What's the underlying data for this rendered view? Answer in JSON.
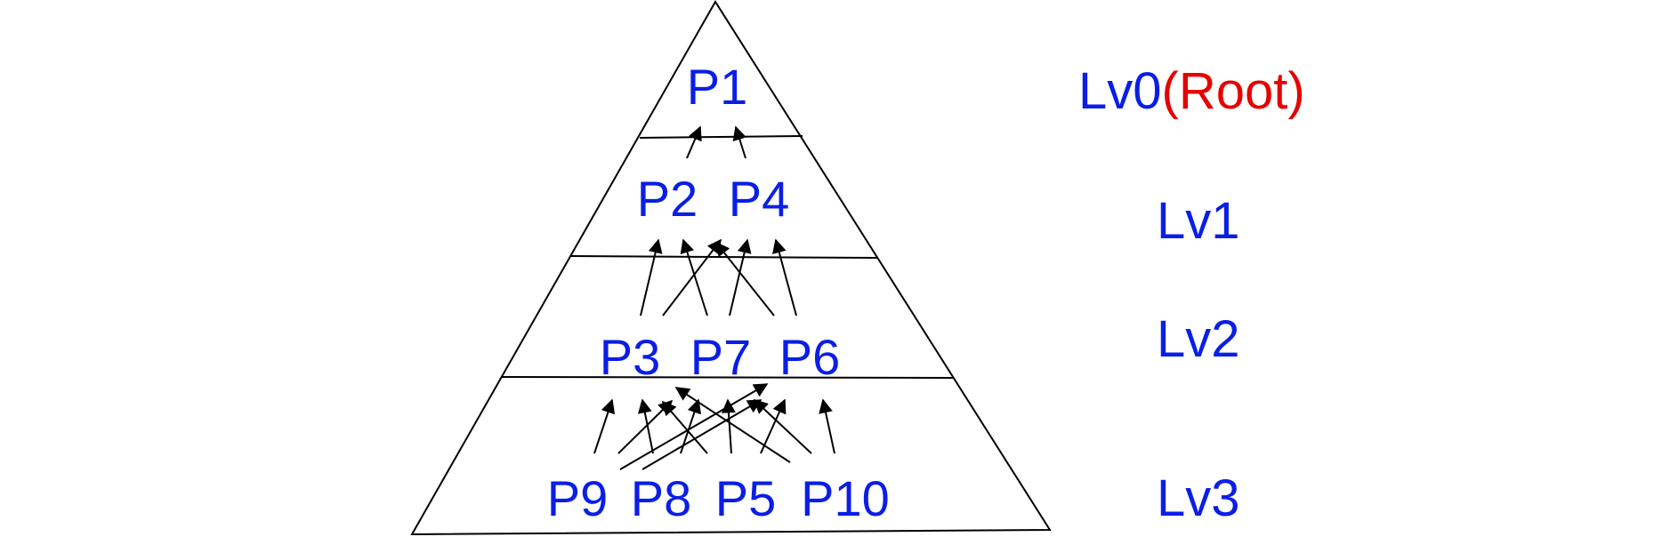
{
  "colors": {
    "node": "#0a1ee6",
    "level": "#0a1ee6",
    "root": "#e60000",
    "stroke": "#000000"
  },
  "levels": [
    {
      "name": "Lv0",
      "suffix": "(Root)"
    },
    {
      "name": "Lv1",
      "suffix": ""
    },
    {
      "name": "Lv2",
      "suffix": ""
    },
    {
      "name": "Lv3",
      "suffix": ""
    }
  ],
  "nodes": {
    "lv0": [
      "P1"
    ],
    "lv1": [
      "P2",
      "P4"
    ],
    "lv2": [
      "P3",
      "P7",
      "P6"
    ],
    "lv3": [
      "P9",
      "P8",
      "P5",
      "P10"
    ]
  }
}
